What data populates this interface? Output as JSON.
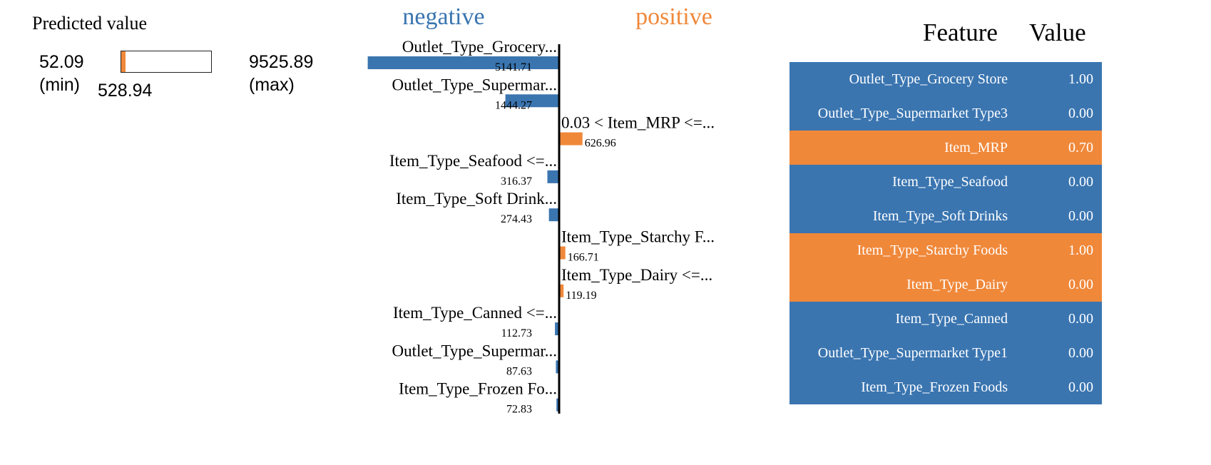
{
  "colors": {
    "negative": "#3a75b0",
    "positive": "#f0883a",
    "axis": "#000000"
  },
  "predicted": {
    "title": "Predicted value",
    "min": "52.09",
    "min_label": "(min)",
    "max": "9525.89",
    "max_label": "(max)",
    "value": "528.94",
    "value_num": 528.94,
    "min_num": 52.09,
    "max_num": 9525.89
  },
  "chart_data": {
    "type": "bar",
    "orientation": "horizontal",
    "headers": {
      "negative": "negative",
      "positive": "positive"
    },
    "bars": [
      {
        "label": "Outlet_Type_Grocery...",
        "value": -5141.71,
        "value_label": "5141.71"
      },
      {
        "label": "Outlet_Type_Supermar...",
        "value": -1444.27,
        "value_label": "1444.27"
      },
      {
        "label": "0.03 < Item_MRP <=...",
        "value": 626.96,
        "value_label": "626.96"
      },
      {
        "label": "Item_Type_Seafood <=...",
        "value": -316.37,
        "value_label": "316.37"
      },
      {
        "label": "Item_Type_Soft Drink...",
        "value": -274.43,
        "value_label": "274.43"
      },
      {
        "label": "Item_Type_Starchy F...",
        "value": 166.71,
        "value_label": "166.71"
      },
      {
        "label": "Item_Type_Dairy <=...",
        "value": 119.19,
        "value_label": "119.19"
      },
      {
        "label": "Item_Type_Canned <=...",
        "value": -112.73,
        "value_label": "112.73"
      },
      {
        "label": "Outlet_Type_Supermar...",
        "value": -87.63,
        "value_label": "87.63"
      },
      {
        "label": "Item_Type_Frozen Fo...",
        "value": -72.83,
        "value_label": "72.83"
      }
    ]
  },
  "table": {
    "header_feature": "Feature",
    "header_value": "Value",
    "rows": [
      {
        "feature": "Outlet_Type_Grocery Store",
        "value": "1.00",
        "sign": "negative"
      },
      {
        "feature": "Outlet_Type_Supermarket Type3",
        "value": "0.00",
        "sign": "negative"
      },
      {
        "feature": "Item_MRP",
        "value": "0.70",
        "sign": "positive"
      },
      {
        "feature": "Item_Type_Seafood",
        "value": "0.00",
        "sign": "negative"
      },
      {
        "feature": "Item_Type_Soft Drinks",
        "value": "0.00",
        "sign": "negative"
      },
      {
        "feature": "Item_Type_Starchy Foods",
        "value": "1.00",
        "sign": "positive"
      },
      {
        "feature": "Item_Type_Dairy",
        "value": "0.00",
        "sign": "positive"
      },
      {
        "feature": "Item_Type_Canned",
        "value": "0.00",
        "sign": "negative"
      },
      {
        "feature": "Outlet_Type_Supermarket Type1",
        "value": "0.00",
        "sign": "negative"
      },
      {
        "feature": "Item_Type_Frozen Foods",
        "value": "0.00",
        "sign": "negative"
      }
    ]
  }
}
